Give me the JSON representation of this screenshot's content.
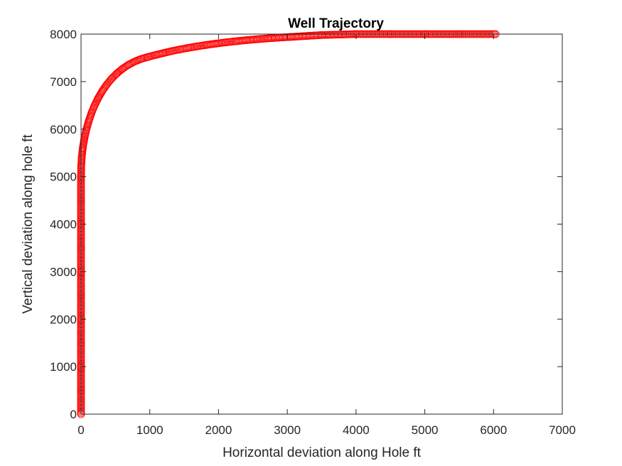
{
  "chart_data": {
    "type": "scatter",
    "title": "Well Trajectory",
    "xlabel": "Horizontal deviation along Hole ft",
    "ylabel": "Vertical deviation along hole ft",
    "xlim": [
      0,
      7000
    ],
    "ylim": [
      0,
      8000
    ],
    "xticks": [
      0,
      1000,
      2000,
      3000,
      4000,
      5000,
      6000,
      7000
    ],
    "yticks": [
      0,
      1000,
      2000,
      3000,
      4000,
      5000,
      6000,
      7000,
      8000
    ],
    "xtick_labels": [
      "0",
      "1000",
      "2000",
      "3000",
      "4000",
      "5000",
      "6000",
      "7000"
    ],
    "ytick_labels": [
      "0",
      "1000",
      "2000",
      "3000",
      "4000",
      "5000",
      "6000",
      "7000",
      "8000"
    ],
    "grid": false,
    "legend": "none",
    "marker": "circle-open",
    "marker_color": "#ff0000",
    "series": [
      {
        "x": [
          0,
          0,
          0,
          0,
          0,
          0,
          0,
          0,
          0,
          0,
          0,
          2,
          10,
          25,
          47,
          75,
          110,
          150,
          197,
          250,
          309,
          373,
          443,
          519,
          600,
          686,
          778,
          875,
          977,
          1084,
          1196,
          1313,
          1434,
          1560,
          1690,
          1824,
          1963,
          2106,
          2253,
          2404,
          2558,
          2716,
          2878,
          3043,
          3500,
          4000,
          4500,
          5000,
          5500,
          6030
        ],
        "y": [
          0,
          500,
          1000,
          1500,
          2000,
          2500,
          3000,
          3500,
          4000,
          4500,
          5000,
          5200,
          5399,
          5596,
          5789,
          5977,
          6158,
          6332,
          6498,
          6655,
          6801,
          6936,
          7059,
          7170,
          7267,
          7351,
          7421,
          7477,
          7520,
          7560,
          7600,
          7640,
          7676,
          7710,
          7742,
          7772,
          7800,
          7826,
          7850,
          7872,
          7892,
          7910,
          7926,
          7940,
          7980,
          8000,
          8000,
          8000,
          8000,
          8000
        ]
      }
    ]
  }
}
